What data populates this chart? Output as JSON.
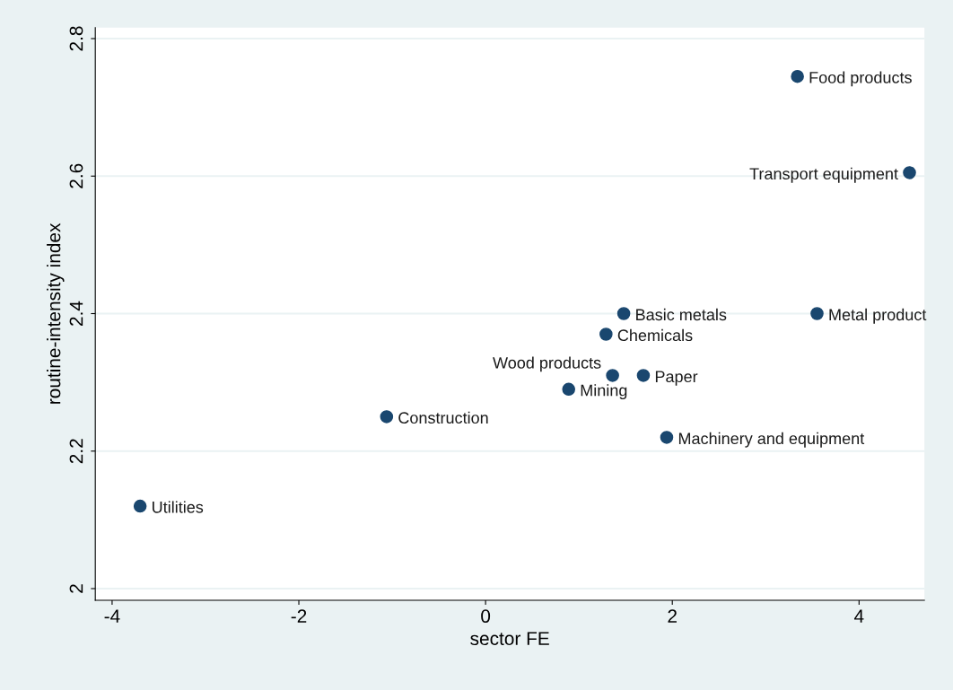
{
  "chart_data": {
    "type": "scatter",
    "xlabel": "sector FE",
    "ylabel": "routine-intensity index",
    "x": [
      3.34,
      4.54,
      1.48,
      3.55,
      1.29,
      1.36,
      1.69,
      0.89,
      -1.06,
      1.94,
      -3.7
    ],
    "values": [
      2.745,
      2.605,
      2.4,
      2.4,
      2.37,
      2.31,
      2.31,
      2.29,
      2.25,
      2.22,
      2.12
    ],
    "color": "#1a476f",
    "marker": "circle",
    "xlim": [
      -4.18,
      4.7
    ],
    "ylim": [
      1.983,
      2.816
    ],
    "xticks": [
      -4,
      -2,
      0,
      2,
      4
    ],
    "yticks": [
      2,
      2.2,
      2.4,
      2.6,
      2.8
    ],
    "grid": "y",
    "annotations": [
      {
        "text": "Food products",
        "x": 3.34,
        "y": 2.745
      },
      {
        "text": "Transport equipment",
        "x": 4.54,
        "y": 2.605
      },
      {
        "text": "Basic metals",
        "x": 1.48,
        "y": 2.4
      },
      {
        "text": "Metal product",
        "x": 3.55,
        "y": 2.4
      },
      {
        "text": "Chemicals",
        "x": 1.29,
        "y": 2.37
      },
      {
        "text": "Wood products",
        "x": 1.36,
        "y": 2.31
      },
      {
        "text": "Paper",
        "x": 1.69,
        "y": 2.31
      },
      {
        "text": "Mining",
        "x": 0.89,
        "y": 2.29
      },
      {
        "text": "Construction",
        "x": -1.06,
        "y": 2.25
      },
      {
        "text": "Machinery and equipment",
        "x": 1.94,
        "y": 2.22
      },
      {
        "text": "Utilities",
        "x": -3.7,
        "y": 2.12
      }
    ]
  }
}
